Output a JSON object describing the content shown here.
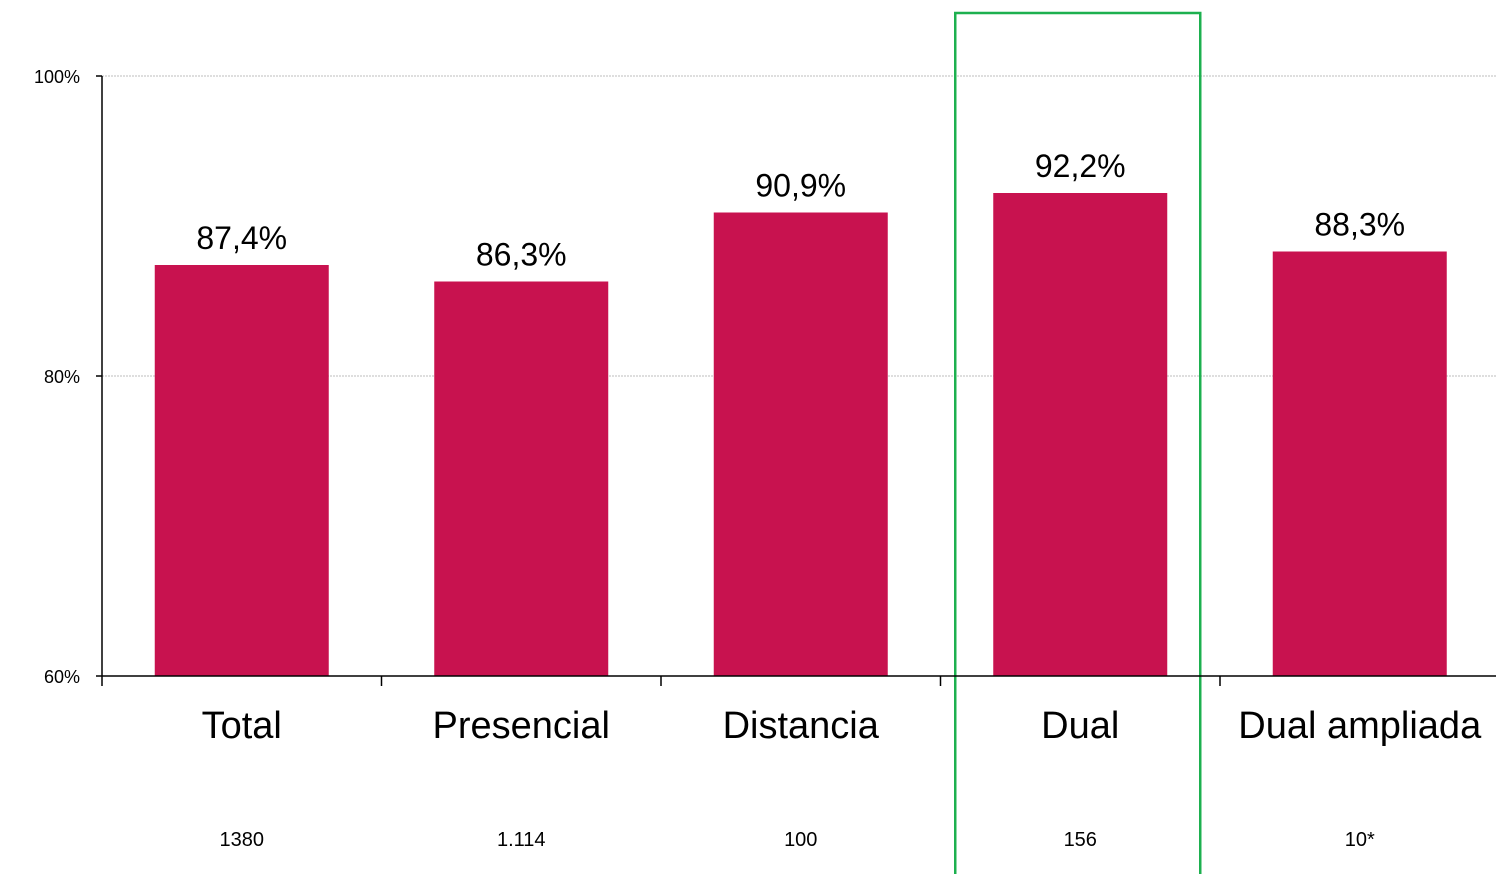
{
  "chart_data": {
    "type": "bar",
    "title": "",
    "xlabel": "",
    "ylabel": "",
    "categories": [
      "Total",
      "Presencial",
      "Distancia",
      "Dual",
      "Dual ampliada"
    ],
    "values": [
      87.4,
      86.3,
      90.9,
      92.2,
      88.3
    ],
    "value_labels": [
      "87,4%",
      "86,3%",
      "90,9%",
      "92,2%",
      "88,3%"
    ],
    "sample_sizes": [
      "1380",
      "1.114",
      "100",
      "156",
      "10*"
    ],
    "ylim": [
      60,
      100
    ],
    "yticks": [
      60,
      80,
      100
    ],
    "ytick_labels": [
      "60%",
      "80%",
      "100%"
    ],
    "grid": true,
    "legend": "none",
    "highlighted_category": "Dual",
    "bar_color": "#c8124f",
    "highlight_box_color": "#1db04f",
    "grid_color": "#bdbdbd"
  }
}
